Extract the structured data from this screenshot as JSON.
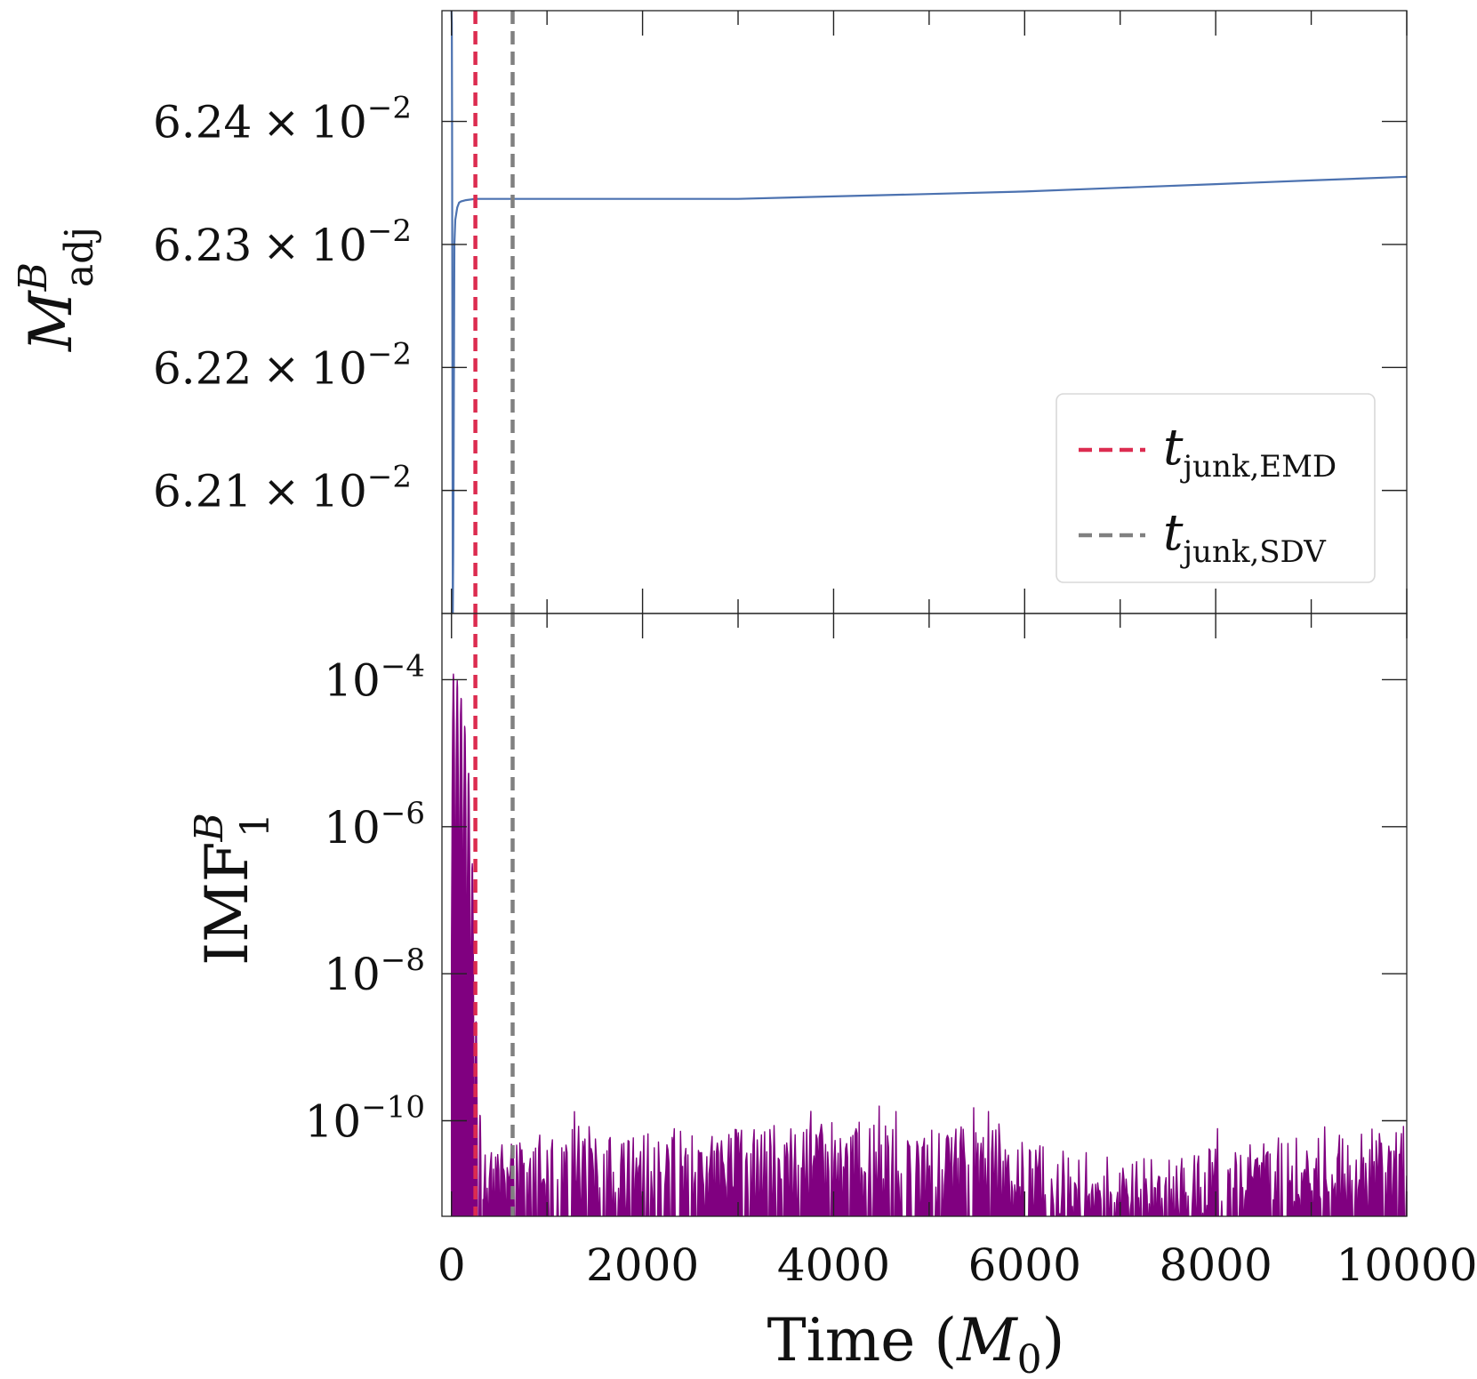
{
  "chart_data": [
    {
      "type": "line",
      "panel": "top",
      "ylabel_base": "M",
      "ylabel_sup": "B",
      "ylabel_sub": "adj",
      "ylim": [
        0.062,
        0.06249
      ],
      "xlim": [
        -100,
        10000
      ],
      "yticks": [
        {
          "value": 0.0624,
          "mantissa": "6.24",
          "times": "×",
          "base": "10",
          "exp": "−2"
        },
        {
          "value": 0.0623,
          "mantissa": "6.23",
          "times": "×",
          "base": "10",
          "exp": "−2"
        },
        {
          "value": 0.0622,
          "mantissa": "6.22",
          "times": "×",
          "base": "10",
          "exp": "−2"
        },
        {
          "value": 0.0621,
          "mantissa": "6.21",
          "times": "×",
          "base": "10",
          "exp": "−2"
        }
      ],
      "series": [
        {
          "name": "M_adj^B",
          "color": "#4c72b0",
          "x": [
            0,
            3,
            6,
            10,
            14,
            18,
            22,
            30,
            40,
            60,
            80,
            100,
            150,
            250,
            400,
            700,
            1000,
            2000,
            3000,
            4000,
            5000,
            6000,
            7000,
            8000,
            9000,
            10000
          ],
          "y": [
            0.06249,
            0.06248,
            0.0624,
            0.0622,
            0.062,
            0.06205,
            0.06212,
            0.0623,
            0.06232,
            0.06233,
            0.062334,
            0.062335,
            0.062336,
            0.062337,
            0.062337,
            0.062337,
            0.062337,
            0.062337,
            0.062337,
            0.062339,
            0.062341,
            0.062343,
            0.062346,
            0.062349,
            0.062352,
            0.062355
          ]
        }
      ],
      "vlines": [
        {
          "name": "t_junk,EMD",
          "x": 250,
          "color": "#dc2c50"
        },
        {
          "name": "t_junk,SDV",
          "x": 640,
          "color": "#808080"
        }
      ],
      "legend": {
        "position": "right",
        "entries": [
          {
            "label_base": "t",
            "label_sub": "junk,EMD",
            "color": "#dc2c50"
          },
          {
            "label_base": "t",
            "label_sub": "junk,SDV",
            "color": "#808080"
          }
        ]
      }
    },
    {
      "type": "line",
      "panel": "bottom",
      "yscale": "log",
      "ylabel_base": "IMF",
      "ylabel_sup": "B",
      "ylabel_sub": "1",
      "ylim_log10": [
        -11.3,
        -3.1
      ],
      "xlim": [
        -100,
        10000
      ],
      "xlabel_prefix": "Time (",
      "xlabel_var": "M",
      "xlabel_sub": "0",
      "xlabel_suffix": ")",
      "yticks": [
        {
          "value": 0.0001,
          "base": "10",
          "exp": "−4"
        },
        {
          "value": 1e-06,
          "base": "10",
          "exp": "−6"
        },
        {
          "value": 1e-08,
          "base": "10",
          "exp": "−8"
        },
        {
          "value": 1e-10,
          "base": "10",
          "exp": "−10"
        }
      ],
      "xticks": [
        {
          "value": 0,
          "label": "0"
        },
        {
          "value": 2000,
          "label": "2000"
        },
        {
          "value": 4000,
          "label": "4000"
        },
        {
          "value": 6000,
          "label": "6000"
        },
        {
          "value": 8000,
          "label": "8000"
        },
        {
          "value": 10000,
          "label": "10000"
        }
      ],
      "series": [
        {
          "name": "IMF_1^B",
          "color": "#800080",
          "junk_peaks": [
            {
              "x": 0,
              "log10y": -3.85
            },
            {
              "x": 40,
              "log10y": -3.95
            },
            {
              "x": 80,
              "log10y": -4.05
            },
            {
              "x": 120,
              "log10y": -4.3
            },
            {
              "x": 160,
              "log10y": -4.9
            },
            {
              "x": 200,
              "log10y": -5.5
            },
            {
              "x": 240,
              "log10y": -7.5
            },
            {
              "x": 280,
              "log10y": -9.8
            },
            {
              "x": 320,
              "log10y": -9.9
            }
          ],
          "noise_envelope": [
            {
              "x": 400,
              "log10y": -10.1
            },
            {
              "x": 1000,
              "log10y": -10.05
            },
            {
              "x": 2000,
              "log10y": -10.1
            },
            {
              "x": 3000,
              "log10y": -10.1
            },
            {
              "x": 4000,
              "log10y": -10.0
            },
            {
              "x": 5000,
              "log10y": -10.1
            },
            {
              "x": 5500,
              "log10y": -10.0
            },
            {
              "x": 6000,
              "log10y": -10.3
            },
            {
              "x": 7000,
              "log10y": -10.5
            },
            {
              "x": 8000,
              "log10y": -10.35
            },
            {
              "x": 9000,
              "log10y": -10.2
            },
            {
              "x": 10000,
              "log10y": -10.05
            }
          ]
        }
      ],
      "vlines": [
        {
          "name": "t_junk,EMD",
          "x": 250,
          "color": "#dc2c50"
        },
        {
          "name": "t_junk,SDV",
          "x": 640,
          "color": "#808080"
        }
      ]
    }
  ]
}
